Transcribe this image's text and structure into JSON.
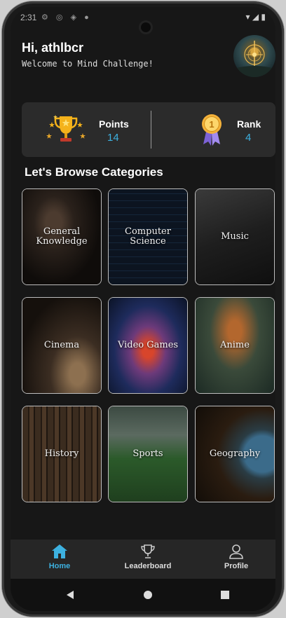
{
  "status": {
    "time": "2:31"
  },
  "header": {
    "greeting": "Hi, athlbcr",
    "subtitle": "Welcome to Mind Challenge!"
  },
  "stats": {
    "points_label": "Points",
    "points_value": "14",
    "rank_label": "Rank",
    "rank_value": "4"
  },
  "categories_title": "Let's Browse Categories",
  "categories": [
    {
      "label": "General\nKnowledge"
    },
    {
      "label": "Computer\nScience"
    },
    {
      "label": "Music"
    },
    {
      "label": "Cinema"
    },
    {
      "label": "Video Games"
    },
    {
      "label": "Anime"
    },
    {
      "label": "History"
    },
    {
      "label": "Sports"
    },
    {
      "label": "Geography"
    }
  ],
  "nav": {
    "home": "Home",
    "leaderboard": "Leaderboard",
    "profile": "Profile"
  },
  "colors": {
    "accent": "#3db1e0",
    "background": "#171717",
    "card": "#2b2b2b"
  }
}
